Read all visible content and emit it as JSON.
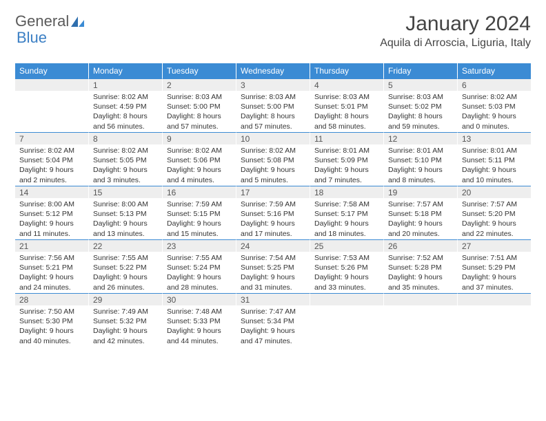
{
  "logo": {
    "text1": "General",
    "text2": "Blue"
  },
  "title": "January 2024",
  "location": "Aquila di Arroscia, Liguria, Italy",
  "colors": {
    "header_bg": "#3b8bd4",
    "header_text": "#ffffff",
    "daynum_bg": "#eeeeee",
    "daynum_border": "#3b8bd4",
    "body_text": "#333333",
    "logo_gray": "#5a5a5a",
    "logo_blue": "#3b7fc4"
  },
  "weekdays": [
    "Sunday",
    "Monday",
    "Tuesday",
    "Wednesday",
    "Thursday",
    "Friday",
    "Saturday"
  ],
  "weeks": [
    {
      "days": [
        "",
        "1",
        "2",
        "3",
        "4",
        "5",
        "6"
      ],
      "info": [
        "",
        "Sunrise: 8:02 AM\nSunset: 4:59 PM\nDaylight: 8 hours and 56 minutes.",
        "Sunrise: 8:03 AM\nSunset: 5:00 PM\nDaylight: 8 hours and 57 minutes.",
        "Sunrise: 8:03 AM\nSunset: 5:00 PM\nDaylight: 8 hours and 57 minutes.",
        "Sunrise: 8:03 AM\nSunset: 5:01 PM\nDaylight: 8 hours and 58 minutes.",
        "Sunrise: 8:03 AM\nSunset: 5:02 PM\nDaylight: 8 hours and 59 minutes.",
        "Sunrise: 8:02 AM\nSunset: 5:03 PM\nDaylight: 9 hours and 0 minutes."
      ]
    },
    {
      "days": [
        "7",
        "8",
        "9",
        "10",
        "11",
        "12",
        "13"
      ],
      "info": [
        "Sunrise: 8:02 AM\nSunset: 5:04 PM\nDaylight: 9 hours and 2 minutes.",
        "Sunrise: 8:02 AM\nSunset: 5:05 PM\nDaylight: 9 hours and 3 minutes.",
        "Sunrise: 8:02 AM\nSunset: 5:06 PM\nDaylight: 9 hours and 4 minutes.",
        "Sunrise: 8:02 AM\nSunset: 5:08 PM\nDaylight: 9 hours and 5 minutes.",
        "Sunrise: 8:01 AM\nSunset: 5:09 PM\nDaylight: 9 hours and 7 minutes.",
        "Sunrise: 8:01 AM\nSunset: 5:10 PM\nDaylight: 9 hours and 8 minutes.",
        "Sunrise: 8:01 AM\nSunset: 5:11 PM\nDaylight: 9 hours and 10 minutes."
      ]
    },
    {
      "days": [
        "14",
        "15",
        "16",
        "17",
        "18",
        "19",
        "20"
      ],
      "info": [
        "Sunrise: 8:00 AM\nSunset: 5:12 PM\nDaylight: 9 hours and 11 minutes.",
        "Sunrise: 8:00 AM\nSunset: 5:13 PM\nDaylight: 9 hours and 13 minutes.",
        "Sunrise: 7:59 AM\nSunset: 5:15 PM\nDaylight: 9 hours and 15 minutes.",
        "Sunrise: 7:59 AM\nSunset: 5:16 PM\nDaylight: 9 hours and 17 minutes.",
        "Sunrise: 7:58 AM\nSunset: 5:17 PM\nDaylight: 9 hours and 18 minutes.",
        "Sunrise: 7:57 AM\nSunset: 5:18 PM\nDaylight: 9 hours and 20 minutes.",
        "Sunrise: 7:57 AM\nSunset: 5:20 PM\nDaylight: 9 hours and 22 minutes."
      ]
    },
    {
      "days": [
        "21",
        "22",
        "23",
        "24",
        "25",
        "26",
        "27"
      ],
      "info": [
        "Sunrise: 7:56 AM\nSunset: 5:21 PM\nDaylight: 9 hours and 24 minutes.",
        "Sunrise: 7:55 AM\nSunset: 5:22 PM\nDaylight: 9 hours and 26 minutes.",
        "Sunrise: 7:55 AM\nSunset: 5:24 PM\nDaylight: 9 hours and 28 minutes.",
        "Sunrise: 7:54 AM\nSunset: 5:25 PM\nDaylight: 9 hours and 31 minutes.",
        "Sunrise: 7:53 AM\nSunset: 5:26 PM\nDaylight: 9 hours and 33 minutes.",
        "Sunrise: 7:52 AM\nSunset: 5:28 PM\nDaylight: 9 hours and 35 minutes.",
        "Sunrise: 7:51 AM\nSunset: 5:29 PM\nDaylight: 9 hours and 37 minutes."
      ]
    },
    {
      "days": [
        "28",
        "29",
        "30",
        "31",
        "",
        "",
        ""
      ],
      "info": [
        "Sunrise: 7:50 AM\nSunset: 5:30 PM\nDaylight: 9 hours and 40 minutes.",
        "Sunrise: 7:49 AM\nSunset: 5:32 PM\nDaylight: 9 hours and 42 minutes.",
        "Sunrise: 7:48 AM\nSunset: 5:33 PM\nDaylight: 9 hours and 44 minutes.",
        "Sunrise: 7:47 AM\nSunset: 5:34 PM\nDaylight: 9 hours and 47 minutes.",
        "",
        "",
        ""
      ]
    }
  ]
}
